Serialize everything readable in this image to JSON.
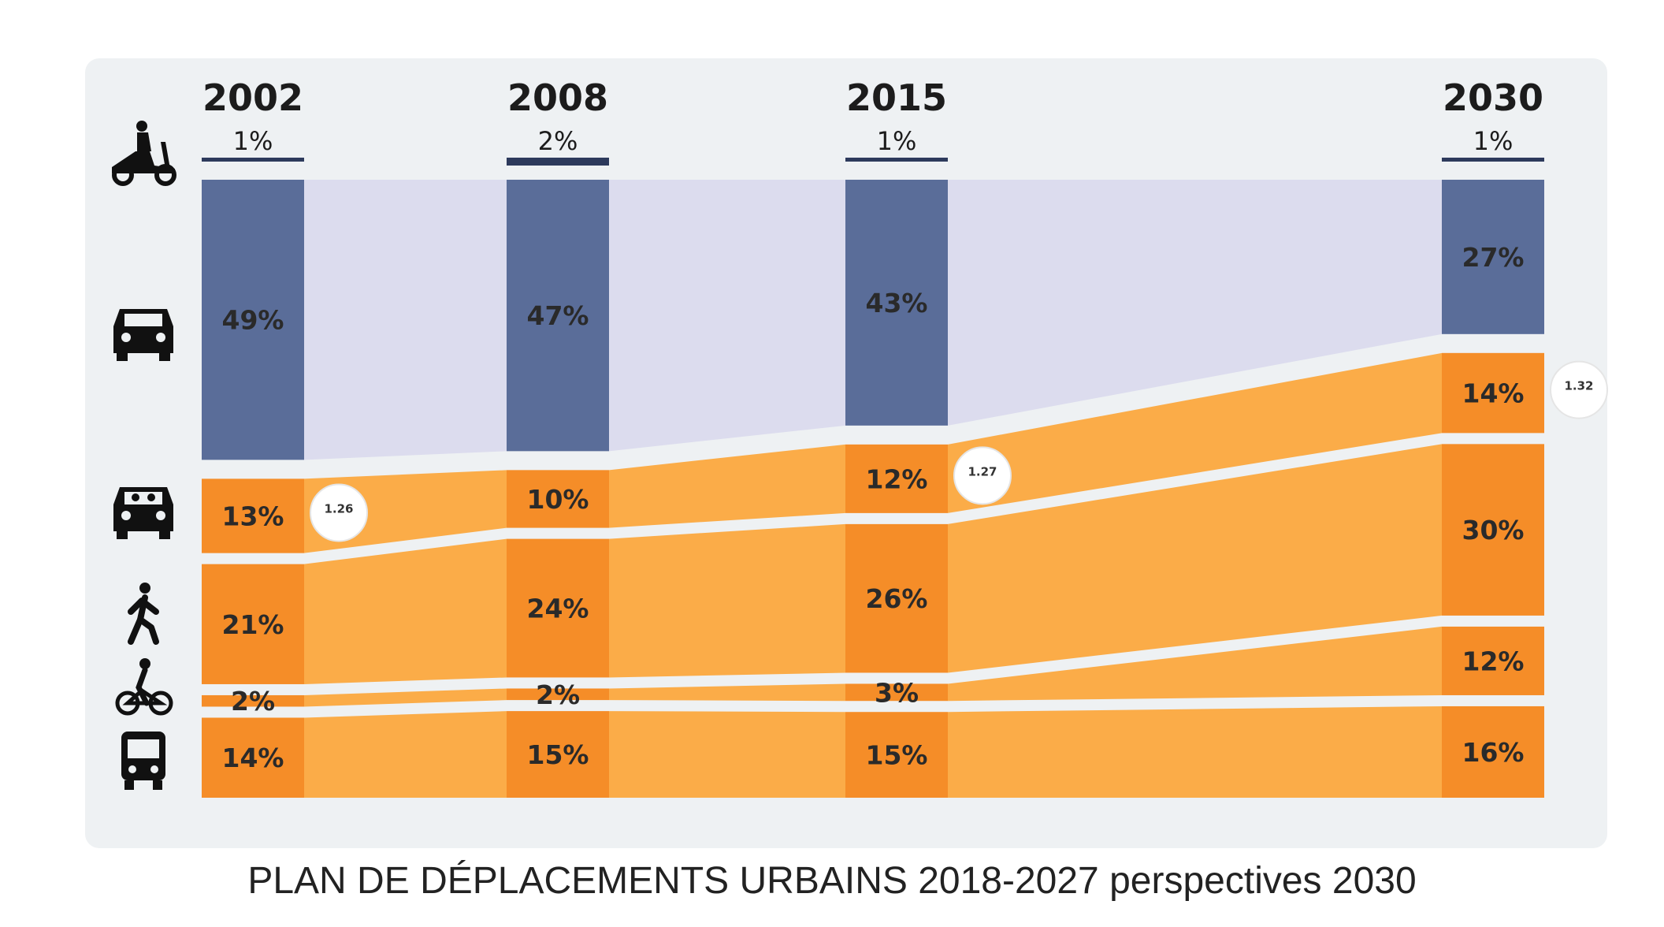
{
  "caption": "PLAN DE DÉPLACEMENTS URBAINS 2018-2027 perspectives 2030",
  "colors": {
    "car": "#5a6d99",
    "car_flow": "#dcdcee",
    "orange_bar": "#f58d28",
    "orange_flow": "#fbac48",
    "panel": "#eef1f3",
    "line": "#2d3a5c"
  },
  "icons": [
    "scooter-icon",
    "car-icon",
    "carpool-icon",
    "pedestrian-icon",
    "cyclist-icon",
    "bus-icon"
  ],
  "chart_data": {
    "type": "bar",
    "categories": [
      "2002",
      "2008",
      "2015",
      "2030"
    ],
    "series": [
      {
        "id": "two-wheeler",
        "values": [
          1,
          2,
          1,
          1
        ],
        "labels": [
          "1%",
          "2%",
          "1%",
          "1%"
        ]
      },
      {
        "id": "car",
        "values": [
          49,
          47,
          43,
          27
        ],
        "labels": [
          "49%",
          "47%",
          "43%",
          "27%"
        ]
      },
      {
        "id": "car-passenger",
        "values": [
          13,
          10,
          12,
          14
        ],
        "labels": [
          "13%",
          "10%",
          "12%",
          "14%"
        ]
      },
      {
        "id": "walking",
        "values": [
          21,
          24,
          26,
          30
        ],
        "labels": [
          "21%",
          "24%",
          "26%",
          "30%"
        ]
      },
      {
        "id": "cycling",
        "values": [
          2,
          2,
          3,
          12
        ],
        "labels": [
          "2%",
          "2%",
          "3%",
          "12%"
        ]
      },
      {
        "id": "public-transport",
        "values": [
          14,
          15,
          15,
          16
        ],
        "labels": [
          "14%",
          "15%",
          "15%",
          "16%"
        ]
      }
    ],
    "occupancy": [
      {
        "year": "2002",
        "value": "1.26"
      },
      {
        "year": "2015",
        "value": "1.27"
      },
      {
        "year": "2030",
        "value": "1.32"
      }
    ]
  }
}
